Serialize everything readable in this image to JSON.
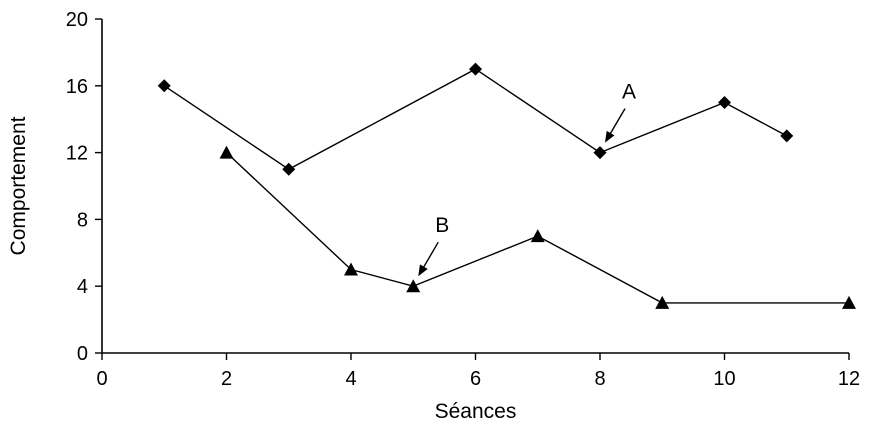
{
  "chart_data": {
    "type": "line",
    "title": "",
    "xlabel": "Séances",
    "ylabel": "Comportement",
    "xlim": [
      0,
      12
    ],
    "ylim": [
      0,
      20
    ],
    "x_ticks": [
      0,
      2,
      4,
      6,
      8,
      10,
      12
    ],
    "y_ticks": [
      0,
      4,
      8,
      12,
      16,
      20
    ],
    "grid": false,
    "series": [
      {
        "marker": "diamond",
        "x": [
          1,
          3,
          6,
          8,
          10,
          11
        ],
        "values": [
          16,
          11,
          17,
          12,
          15,
          13
        ]
      },
      {
        "marker": "triangle",
        "x": [
          2,
          4,
          5,
          7,
          9,
          12
        ],
        "values": [
          12,
          5,
          4,
          7,
          3,
          3
        ]
      }
    ],
    "annotations": [
      {
        "text": "A",
        "target_x": 8,
        "target_y": 12,
        "series_index": 0
      },
      {
        "text": "B",
        "target_x": 5,
        "target_y": 4,
        "series_index": 1
      }
    ]
  }
}
